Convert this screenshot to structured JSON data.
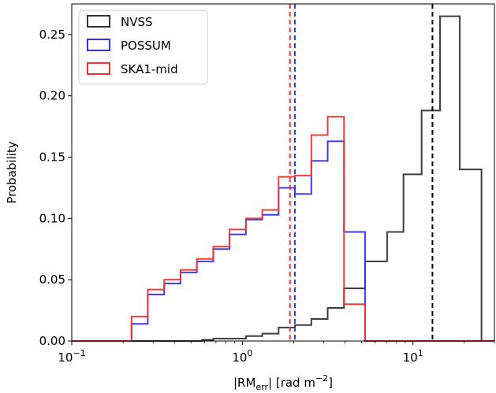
{
  "chart_data": {
    "type": "histogram",
    "xlabel": "|RM",
    "xlabel_sub": "err",
    "xlabel_unit": "| [rad m",
    "xlabel_unit_exp": "−2",
    "xlabel_end": "]",
    "ylabel": "Probability",
    "xscale": "log",
    "xlim": [
      0.1,
      30
    ],
    "ylim": [
      0,
      0.275
    ],
    "yticks": [
      "0.00",
      "0.05",
      "0.10",
      "0.15",
      "0.20",
      "0.25"
    ],
    "xticks": [
      {
        "base": "10",
        "exp": "−1"
      },
      {
        "base": "10",
        "exp": "0"
      },
      {
        "base": "10",
        "exp": "1"
      }
    ],
    "legend_position": "top-left",
    "bin_edges": [
      0.224,
      0.279,
      0.348,
      0.434,
      0.541,
      0.675,
      0.841,
      1.049,
      1.308,
      1.63,
      2.033,
      2.535,
      3.161,
      3.941,
      4.914,
      6.127,
      7.64,
      9.526,
      11.878,
      14.81,
      18.467,
      23.026
    ],
    "series": [
      {
        "name": "NVSS",
        "color": "#333333",
        "edges": [
          0.58,
          0.675,
          0.841,
          1.049,
          1.308,
          1.63,
          2.033,
          2.535,
          3.161,
          3.941,
          5.237,
          7.047,
          8.79,
          11.23,
          14.4,
          18.8,
          25.2
        ],
        "values": [
          0.001,
          0.002,
          0.002,
          0.004,
          0.006,
          0.011,
          0.013,
          0.018,
          0.027,
          0.043,
          0.065,
          0.089,
          0.136,
          0.188,
          0.265,
          0.14
        ],
        "median": 13.0
      },
      {
        "name": "POSSUM",
        "color": "#3333ee",
        "edges": [
          0.224,
          0.279,
          0.348,
          0.434,
          0.541,
          0.675,
          0.841,
          1.049,
          1.308,
          1.63,
          2.033,
          2.535,
          3.161,
          3.941,
          5.237
        ],
        "values": [
          0.014,
          0.038,
          0.047,
          0.056,
          0.065,
          0.075,
          0.087,
          0.099,
          0.103,
          0.125,
          0.12,
          0.147,
          0.163,
          0.089
        ],
        "median": 2.03
      },
      {
        "name": "SKA1-mid",
        "color": "#ee3333",
        "edges": [
          0.224,
          0.279,
          0.348,
          0.434,
          0.541,
          0.675,
          0.841,
          1.049,
          1.308,
          1.63,
          2.033,
          2.535,
          3.161,
          3.941,
          5.237
        ],
        "values": [
          0.02,
          0.042,
          0.05,
          0.058,
          0.067,
          0.077,
          0.091,
          0.1,
          0.107,
          0.134,
          0.135,
          0.168,
          0.183,
          0.03
        ],
        "median": 1.9
      }
    ]
  }
}
